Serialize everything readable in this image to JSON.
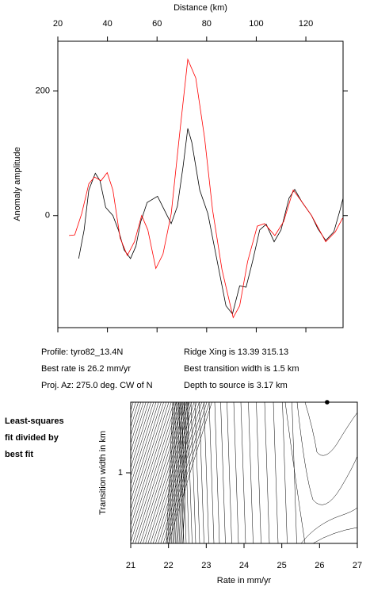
{
  "chart_data": [
    {
      "type": "line",
      "xlabel": "Distance (km)",
      "ylabel": "Anomaly amplitude",
      "xlim": [
        20,
        135
      ],
      "xticks": [
        20,
        40,
        60,
        80,
        100,
        120
      ],
      "ylim": [
        -180,
        280
      ],
      "yticks": [
        0,
        200
      ],
      "series": [
        {
          "color": "#000000",
          "x": [
            28.4,
            30.6,
            32.5,
            35.1,
            37.0,
            39.3,
            42.2,
            44.4,
            46.7,
            49.3,
            51.5,
            53.4,
            56.0,
            60.2,
            63.7,
            65.7,
            68.2,
            70.5,
            72.4,
            74.0,
            77.2,
            80.5,
            83.7,
            87.8,
            90.4,
            93.3,
            95.9,
            98.5,
            101.4,
            104.0,
            107.2,
            110.0,
            113.2,
            115.5,
            118.4,
            122.3,
            124.8,
            128.0,
            131.3,
            133.8,
            135
          ],
          "values": [
            -69,
            -23,
            41,
            68,
            56,
            13,
            0,
            -23,
            -55,
            -69,
            -49,
            -10,
            21,
            31,
            3,
            -13,
            15,
            79,
            140,
            118,
            41,
            3,
            -62,
            -145,
            -158,
            -113,
            -115,
            -74,
            -23,
            -14,
            -42,
            -23,
            28,
            42,
            22,
            0,
            -21,
            -40,
            -26,
            9,
            28
          ]
        },
        {
          "color": "#ff0000",
          "x": [
            24.5,
            26.8,
            29.6,
            32.5,
            34.8,
            37.4,
            39.9,
            42.2,
            45.1,
            48.0,
            50.9,
            53.8,
            56.3,
            59.5,
            62.4,
            65.7,
            68.9,
            72.4,
            75.6,
            79.2,
            82.4,
            86.2,
            90.7,
            93.3,
            96.5,
            100.4,
            103.3,
            107.5,
            111.0,
            114.9,
            117.7,
            122.3,
            128.0,
            131.9,
            134.8
          ],
          "values": [
            -32,
            -31,
            3,
            51,
            62,
            56,
            69,
            41,
            -36,
            -64,
            -42,
            0,
            -23,
            -85,
            -62,
            3,
            124,
            251,
            221,
            124,
            9,
            -87,
            -164,
            -145,
            -74,
            -17,
            -13,
            -32,
            -10,
            41,
            26,
            0,
            -42,
            -26,
            -4
          ]
        }
      ],
      "annotations": [
        "Profile: tyro82_13.4N",
        "Best rate is 26.2 mm/yr",
        "Proj. Az: 275.0 deg. CW of N",
        "Ridge Xing is 13.39 315.13",
        "Best transition width is 1.5 km",
        "Depth to source is   3.17 km"
      ]
    },
    {
      "type": "contour",
      "xlabel": "Rate in mm/yr",
      "ylabel": "Transition width in km",
      "xlim": [
        21,
        27
      ],
      "xticks": [
        21,
        22,
        23,
        24,
        25,
        26,
        27
      ],
      "ylim": [
        0.5,
        1.5
      ],
      "yticks": [
        1
      ],
      "x": [
        26.2
      ],
      "y": [
        1.5
      ],
      "annotations": [
        "Least-squares",
        "fit divided by",
        "best fit"
      ]
    }
  ]
}
